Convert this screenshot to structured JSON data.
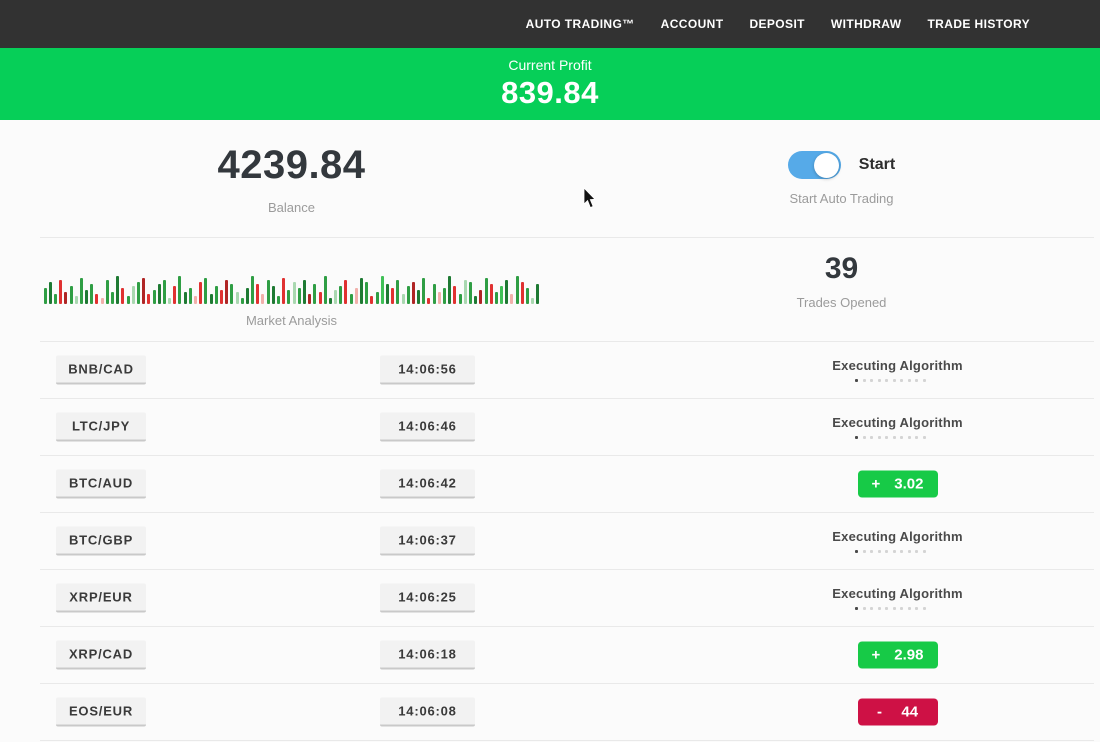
{
  "nav": {
    "items": [
      {
        "id": "auto-trading",
        "label": "AUTO TRADING™"
      },
      {
        "id": "account",
        "label": "ACCOUNT"
      },
      {
        "id": "deposit",
        "label": "DEPOSIT"
      },
      {
        "id": "withdraw",
        "label": "WITHDRAW"
      },
      {
        "id": "trade-history",
        "label": "TRADE HISTORY"
      }
    ]
  },
  "profit_banner": {
    "label": "Current Profit",
    "value": "839.84",
    "bg_color": "#06cf58"
  },
  "stats": {
    "balance_value": "4239.84",
    "balance_label": "Balance",
    "toggle_label": "Start",
    "toggle_state": "on",
    "toggle_color": "#56aae8",
    "toggle_caption": "Start Auto Trading"
  },
  "market": {
    "label": "Market Analysis",
    "trades_opened_value": "39",
    "trades_opened_label": "Trades Opened",
    "bar_colors": {
      "g": "#2f9e44",
      "G": "#40c057",
      "d": "#1e7a33",
      "p": "#a9d8b0",
      "r": "#e03131",
      "R": "#b02525",
      "q": "#f1b0ab"
    },
    "bars": [
      "g16",
      "d22",
      "g10",
      "r24",
      "R12",
      "g18",
      "p8",
      "g26",
      "d14",
      "g20",
      "r10",
      "q6",
      "g24",
      "g12",
      "d28",
      "r16",
      "g8",
      "p18",
      "g22",
      "R26",
      "r10",
      "g14",
      "d20",
      "g24",
      "p6",
      "r18",
      "g28",
      "d12",
      "g16",
      "q8",
      "r22",
      "g26",
      "d10",
      "g18",
      "r14",
      "R24",
      "g20",
      "p12",
      "g6",
      "d16",
      "g28",
      "r20",
      "q10",
      "g24",
      "d18",
      "g8",
      "r26",
      "g14",
      "p22",
      "g16",
      "d24",
      "R10",
      "g20",
      "r12",
      "g28",
      "d6",
      "p14",
      "g18",
      "r24",
      "g10",
      "q16",
      "d26",
      "g22",
      "r8",
      "g12",
      "G28",
      "d20",
      "r16",
      "g24",
      "p10",
      "g18",
      "R22",
      "d14",
      "g26",
      "r6",
      "g20",
      "q12",
      "g16",
      "d28",
      "r18",
      "g10",
      "p24",
      "g22",
      "d8",
      "R14",
      "g26",
      "r20",
      "g12",
      "G18",
      "d24",
      "q10",
      "g28",
      "r22",
      "g16",
      "p6",
      "d20"
    ]
  },
  "trades": {
    "executing_label": "Executing Algorithm",
    "executing_dots": 10,
    "profit_color": "#17ca47",
    "loss_color": "#ce1145",
    "rows": [
      {
        "pair": "BNB/CAD",
        "time": "14:06:56",
        "status": "executing"
      },
      {
        "pair": "LTC/JPY",
        "time": "14:06:46",
        "status": "executing"
      },
      {
        "pair": "BTC/AUD",
        "time": "14:06:42",
        "status": "profit",
        "sign": "+",
        "amount": "3.02"
      },
      {
        "pair": "BTC/GBP",
        "time": "14:06:37",
        "status": "executing"
      },
      {
        "pair": "XRP/EUR",
        "time": "14:06:25",
        "status": "executing"
      },
      {
        "pair": "XRP/CAD",
        "time": "14:06:18",
        "status": "profit",
        "sign": "+",
        "amount": "2.98"
      },
      {
        "pair": "EOS/EUR",
        "time": "14:06:08",
        "status": "loss",
        "sign": "-",
        "amount": "44"
      }
    ]
  }
}
